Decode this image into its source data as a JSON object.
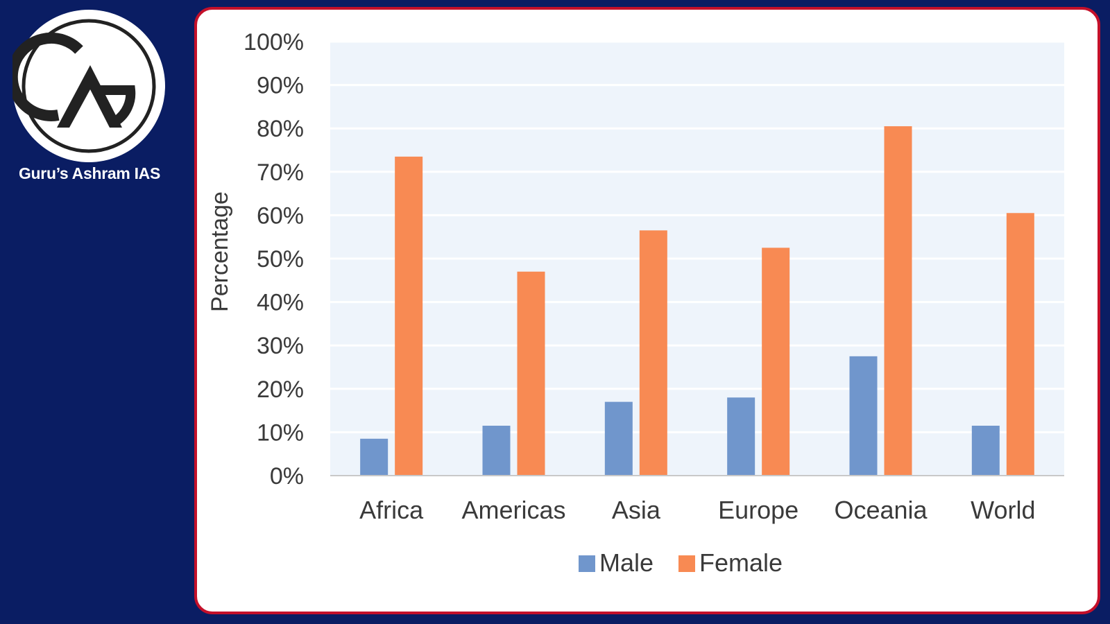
{
  "brand": {
    "name": "Guru’s Ashram IAS",
    "logo_icon": "ga-monogram-logo-icon"
  },
  "colors": {
    "background": "#0a1d63",
    "card_border": "#c4102a",
    "male": "#7096cc",
    "female": "#f88a53",
    "plot_background": "#eef4fb"
  },
  "chart_data": {
    "type": "bar",
    "categories": [
      "Africa",
      "Americas",
      "Asia",
      "Europe",
      "Oceania",
      "World"
    ],
    "series": [
      {
        "name": "Male",
        "values": [
          8.5,
          11.5,
          17,
          18,
          27.5,
          11.5
        ]
      },
      {
        "name": "Female",
        "values": [
          73.5,
          47,
          56.5,
          52.5,
          80.5,
          60.5
        ]
      }
    ],
    "title": "",
    "xlabel": "",
    "ylabel": "Percentage",
    "ylim": [
      0,
      100
    ],
    "yticks": [
      0,
      10,
      20,
      30,
      40,
      50,
      60,
      70,
      80,
      90,
      100
    ],
    "ytick_labels": [
      "0%",
      "10%",
      "20%",
      "30%",
      "40%",
      "50%",
      "60%",
      "70%",
      "80%",
      "90%",
      "100%"
    ],
    "grid": true,
    "legend_position": "bottom"
  }
}
